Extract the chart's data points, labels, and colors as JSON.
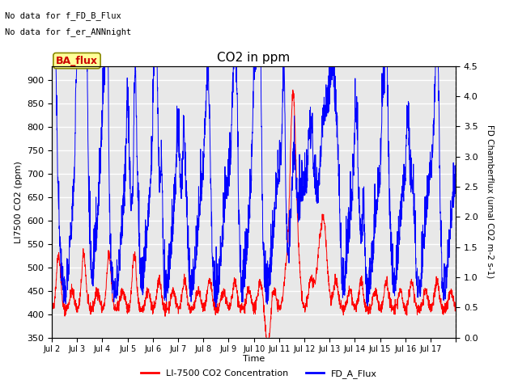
{
  "title": "CO2 in ppm",
  "xlabel": "Time",
  "ylabel_left": "LI7500 CO2 (ppm)",
  "ylabel_right": "FD Chamberflux (umal CO2 m-2 s-1)",
  "left_ylim": [
    350,
    930
  ],
  "right_ylim": [
    0.0,
    4.5
  ],
  "left_yticks": [
    350,
    400,
    450,
    500,
    550,
    600,
    650,
    700,
    750,
    800,
    850,
    900
  ],
  "right_yticks": [
    0.0,
    0.5,
    1.0,
    1.5,
    2.0,
    2.5,
    3.0,
    3.5,
    4.0,
    4.5
  ],
  "xtick_labels": [
    "Jul 2",
    "Jul 3",
    "Jul 4",
    "Jul 5",
    "Jul 6",
    "Jul 7",
    "Jul 8",
    "Jul 9",
    "Jul 10",
    "Jul 11",
    "Jul 12",
    "Jul 13",
    "Jul 14",
    "Jul 15",
    "Jul 16",
    "Jul 17"
  ],
  "legend_labels": [
    "LI-7500 CO2 Concentration",
    "FD_A_Flux"
  ],
  "legend_colors": [
    "red",
    "blue"
  ],
  "text_annotations": [
    "No data for f_FD_B_Flux",
    "No data for f_er_ANNnight"
  ],
  "ba_flux_label": "BA_flux",
  "ba_flux_color": "#cc0000",
  "ba_flux_bg": "#ffff99",
  "line_color_co2": "red",
  "line_color_flux": "blue",
  "plot_bg": "#e8e8e8",
  "n_days": 16,
  "seed": 42
}
